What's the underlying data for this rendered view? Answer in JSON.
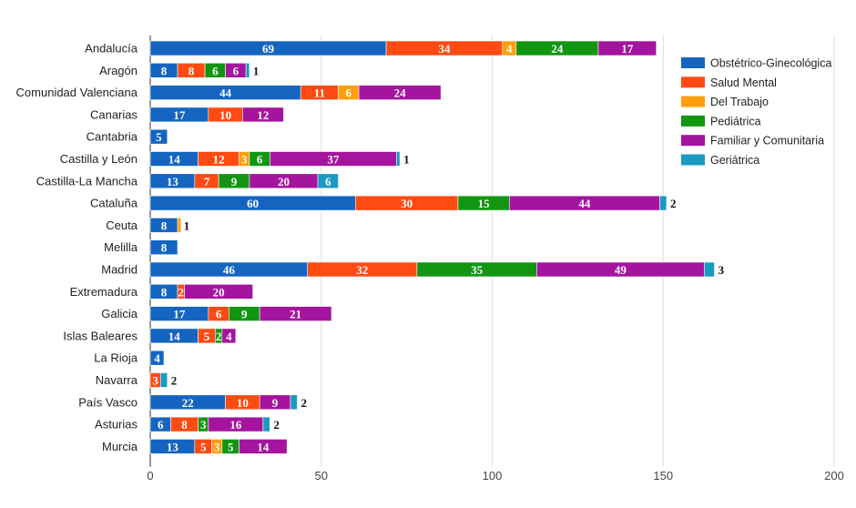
{
  "chart_data": {
    "type": "bar",
    "orientation": "horizontal",
    "stacked": true,
    "title": "",
    "xlabel": "",
    "ylabel": "",
    "xlim": [
      0,
      200
    ],
    "x_ticks": [
      0,
      50,
      100,
      150,
      200
    ],
    "grid": true,
    "legend_position": "right",
    "categories": [
      "Andalucía",
      "Aragón",
      "Comunidad Valenciana",
      "Canarias",
      "Cantabria",
      "Castilla y León",
      "Castilla-La Mancha",
      "Cataluña",
      "Ceuta",
      "Melilla",
      "Madrid",
      "Extremadura",
      "Galicia",
      "Islas Baleares",
      "La Rioja",
      "Navarra",
      "País Vasco",
      "Asturias",
      "Murcia"
    ],
    "series": [
      {
        "name": "Obstétrico-Ginecológica",
        "color": "#1565c0",
        "values": [
          69,
          8,
          44,
          17,
          5,
          14,
          13,
          60,
          8,
          8,
          46,
          8,
          17,
          14,
          4,
          0,
          22,
          6,
          13
        ]
      },
      {
        "name": "Salud Mental",
        "color": "#ff4a12",
        "values": [
          34,
          8,
          11,
          10,
          0,
          12,
          7,
          30,
          0,
          0,
          32,
          2,
          6,
          5,
          0,
          3,
          10,
          8,
          5
        ]
      },
      {
        "name": "Del Trabajo",
        "color": "#ff9e0f",
        "values": [
          4,
          0,
          6,
          0,
          0,
          3,
          0,
          0,
          1,
          0,
          0,
          0,
          0,
          0,
          0,
          0,
          0,
          0,
          3
        ]
      },
      {
        "name": "Pediátrica",
        "color": "#129612",
        "values": [
          24,
          6,
          0,
          0,
          0,
          6,
          9,
          15,
          0,
          0,
          35,
          0,
          9,
          2,
          0,
          0,
          0,
          3,
          5
        ]
      },
      {
        "name": "Familiar y Comunitaria",
        "color": "#a5149f",
        "values": [
          17,
          6,
          24,
          12,
          0,
          37,
          20,
          44,
          0,
          0,
          49,
          20,
          21,
          4,
          0,
          0,
          9,
          16,
          14
        ]
      },
      {
        "name": "Geriátrica",
        "color": "#1a9ac2",
        "values": [
          0,
          1,
          0,
          0,
          0,
          1,
          6,
          2,
          0,
          0,
          3,
          0,
          0,
          0,
          0,
          2,
          2,
          2,
          0
        ]
      }
    ]
  }
}
